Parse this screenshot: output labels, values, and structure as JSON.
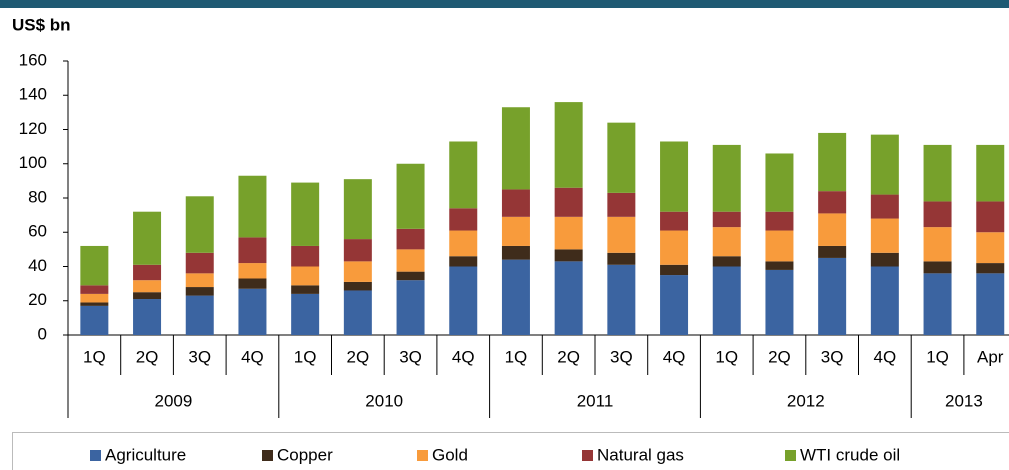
{
  "chart_data": {
    "type": "stacked_bar",
    "y_label": "US$ bn",
    "groups": [
      {
        "label": "2009",
        "categories": [
          "1Q",
          "2Q",
          "3Q",
          "4Q"
        ]
      },
      {
        "label": "2010",
        "categories": [
          "1Q",
          "2Q",
          "3Q",
          "4Q"
        ]
      },
      {
        "label": "2011",
        "categories": [
          "1Q",
          "2Q",
          "3Q",
          "4Q"
        ]
      },
      {
        "label": "2012",
        "categories": [
          "1Q",
          "2Q",
          "3Q",
          "4Q"
        ]
      },
      {
        "label": "2013",
        "categories": [
          "1Q",
          "Apr"
        ]
      }
    ],
    "series": [
      {
        "name": "Agriculture",
        "color": "#3b64a1",
        "values": [
          17,
          21,
          23,
          27,
          24,
          26,
          32,
          40,
          44,
          43,
          41,
          35,
          40,
          38,
          45,
          40,
          36,
          36
        ]
      },
      {
        "name": "Copper",
        "color": "#3f2c1b",
        "values": [
          2,
          4,
          5,
          6,
          5,
          5,
          5,
          6,
          8,
          7,
          7,
          6,
          6,
          5,
          7,
          8,
          7,
          6
        ]
      },
      {
        "name": "Gold",
        "color": "#f89b3c",
        "values": [
          5,
          7,
          8,
          9,
          11,
          12,
          13,
          15,
          17,
          19,
          21,
          20,
          17,
          18,
          19,
          20,
          20,
          18
        ]
      },
      {
        "name": "Natural gas",
        "color": "#953636",
        "values": [
          5,
          9,
          12,
          15,
          12,
          13,
          12,
          13,
          16,
          17,
          14,
          11,
          9,
          11,
          13,
          14,
          15,
          18
        ]
      },
      {
        "name": "WTI crude oil",
        "color": "#77a12b",
        "values": [
          23,
          31,
          33,
          36,
          37,
          35,
          38,
          39,
          48,
          50,
          41,
          41,
          39,
          34,
          34,
          35,
          33,
          33
        ]
      }
    ],
    "ylim": [
      0,
      160
    ],
    "yticks": [
      0,
      20,
      40,
      60,
      80,
      100,
      120,
      140,
      160
    ],
    "grid": false,
    "legend": "bottom"
  }
}
